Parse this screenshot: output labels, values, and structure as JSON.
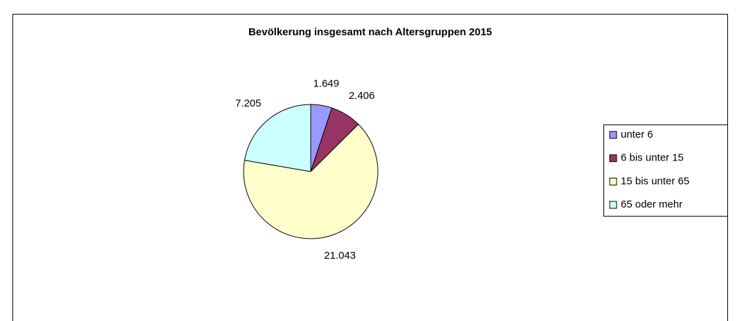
{
  "chart_data": {
    "type": "pie",
    "title": "Bevölkerung insgesamt nach Altersgruppen 2015",
    "categories": [
      "unter 6",
      "6 bis unter 15",
      "15 bis unter 65",
      "65 oder mehr"
    ],
    "values": [
      1649,
      2406,
      21043,
      7205
    ],
    "value_labels": [
      "1.649",
      "2.406",
      "21.043",
      "7.205"
    ],
    "colors": [
      "#9999ff",
      "#993366",
      "#ffffcc",
      "#ccffff"
    ],
    "legend": "right"
  }
}
